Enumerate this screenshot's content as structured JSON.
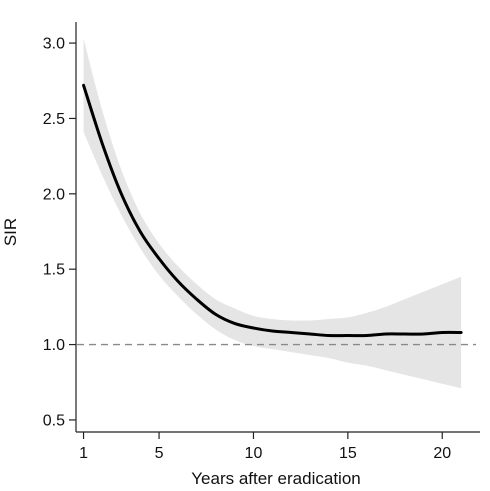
{
  "chart_data": {
    "type": "line",
    "title": "",
    "xlabel": "Years after eradication",
    "ylabel": "SIR",
    "xlim": [
      0.6,
      22.0
    ],
    "ylim": [
      0.42,
      3.1
    ],
    "xticks": [
      1,
      5,
      10,
      15,
      20
    ],
    "yticks": [
      0.5,
      1.0,
      1.5,
      2.0,
      2.5,
      3.0
    ],
    "ytick_labels": [
      "0.5",
      "1.0",
      "1.5",
      "2.0",
      "2.5",
      "3.0"
    ],
    "grid": false,
    "legend": "none",
    "reference_line": {
      "y": 1.0,
      "style": "dashed",
      "color": "#8a8a8a"
    },
    "series": [
      {
        "x": [
          1,
          2,
          3,
          4,
          5,
          6,
          7,
          8,
          9,
          10,
          11,
          12,
          13,
          14,
          15,
          16,
          17,
          18,
          19,
          20,
          21
        ],
        "y": [
          2.72,
          2.33,
          2.0,
          1.75,
          1.57,
          1.42,
          1.3,
          1.2,
          1.14,
          1.11,
          1.09,
          1.08,
          1.07,
          1.06,
          1.06,
          1.06,
          1.07,
          1.07,
          1.07,
          1.08,
          1.08
        ],
        "ci_lower": [
          2.41,
          2.12,
          1.86,
          1.64,
          1.46,
          1.32,
          1.2,
          1.1,
          1.03,
          0.99,
          0.97,
          0.95,
          0.93,
          0.91,
          0.88,
          0.86,
          0.83,
          0.8,
          0.77,
          0.74,
          0.71
        ],
        "ci_upper": [
          3.03,
          2.55,
          2.16,
          1.87,
          1.67,
          1.52,
          1.4,
          1.3,
          1.24,
          1.19,
          1.17,
          1.16,
          1.16,
          1.17,
          1.18,
          1.21,
          1.25,
          1.3,
          1.35,
          1.4,
          1.45
        ],
        "color": "#000000",
        "band_color": "#e5e5e5"
      }
    ]
  }
}
